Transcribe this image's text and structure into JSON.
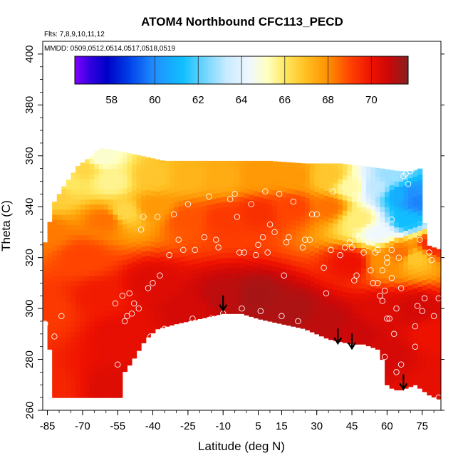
{
  "chart_data": {
    "type": "heatmap",
    "title": "ATOM4 Northbound CFC113_PECD",
    "notes": {
      "flights": "Flts: 7,8,9,10,11,12",
      "dates": "MMDD: 0509,0512,0514,0517,0518,0519"
    },
    "xlabel": "Latitude (deg N)",
    "ylabel": "Theta (C)",
    "xlim": [
      -87,
      83
    ],
    "ylim": [
      260,
      405
    ],
    "x_ticks": [
      -85,
      -70,
      -55,
      -40,
      -25,
      -10,
      5,
      15,
      30,
      45,
      60,
      75
    ],
    "y_ticks": [
      260,
      280,
      300,
      320,
      340,
      360,
      380,
      400
    ],
    "colorbar": {
      "range": [
        56.3,
        71.7
      ],
      "ticks": [
        58,
        60,
        62,
        64,
        66,
        68,
        70
      ],
      "stops": [
        {
          "v": 56.3,
          "c": "#7f00ff"
        },
        {
          "v": 57.0,
          "c": "#3300e0"
        },
        {
          "v": 57.8,
          "c": "#0000c8"
        },
        {
          "v": 58.8,
          "c": "#0040e8"
        },
        {
          "v": 60.0,
          "c": "#2090ff"
        },
        {
          "v": 61.3,
          "c": "#10c0ff"
        },
        {
          "v": 62.3,
          "c": "#6fd6ff"
        },
        {
          "v": 63.3,
          "c": "#c8eaff"
        },
        {
          "v": 64.4,
          "c": "#f0f8ff"
        },
        {
          "v": 65.2,
          "c": "#ffffc0"
        },
        {
          "v": 66.0,
          "c": "#ffe860"
        },
        {
          "v": 67.0,
          "c": "#ffbe20"
        },
        {
          "v": 68.0,
          "c": "#ff9000"
        },
        {
          "v": 69.0,
          "c": "#ff4400"
        },
        {
          "v": 70.0,
          "c": "#ee1100"
        },
        {
          "v": 70.8,
          "c": "#cc0808"
        },
        {
          "v": 71.7,
          "c": "#882020"
        }
      ]
    },
    "field_points": [
      {
        "lat": -86,
        "theta": 268,
        "v": 69.6
      },
      {
        "lat": -86,
        "theta": 300,
        "v": 69.2
      },
      {
        "lat": -86,
        "theta": 330,
        "v": 68.3
      },
      {
        "lat": -82,
        "theta": 345,
        "v": 66.6
      },
      {
        "lat": -76,
        "theta": 350,
        "v": 66.0
      },
      {
        "lat": -70,
        "theta": 355,
        "v": 66.4
      },
      {
        "lat": -62,
        "theta": 360,
        "v": 65.0
      },
      {
        "lat": -58,
        "theta": 350,
        "v": 65.6
      },
      {
        "lat": -52,
        "theta": 338,
        "v": 66.4
      },
      {
        "lat": -60,
        "theta": 335,
        "v": 68.4
      },
      {
        "lat": -70,
        "theta": 320,
        "v": 69.0
      },
      {
        "lat": -62,
        "theta": 305,
        "v": 69.8
      },
      {
        "lat": -52,
        "theta": 290,
        "v": 70.2
      },
      {
        "lat": -55,
        "theta": 268,
        "v": 70.4
      },
      {
        "lat": -40,
        "theta": 352,
        "v": 66.8
      },
      {
        "lat": -40,
        "theta": 340,
        "v": 67.8
      },
      {
        "lat": -40,
        "theta": 310,
        "v": 70.4
      },
      {
        "lat": -25,
        "theta": 352,
        "v": 67.2
      },
      {
        "lat": -25,
        "theta": 335,
        "v": 68.8
      },
      {
        "lat": -25,
        "theta": 300,
        "v": 70.6
      },
      {
        "lat": -10,
        "theta": 352,
        "v": 67.4
      },
      {
        "lat": -10,
        "theta": 335,
        "v": 69.2
      },
      {
        "lat": -10,
        "theta": 305,
        "v": 71.0
      },
      {
        "lat": 5,
        "theta": 352,
        "v": 67.8
      },
      {
        "lat": 5,
        "theta": 338,
        "v": 69.4
      },
      {
        "lat": 5,
        "theta": 305,
        "v": 71.3
      },
      {
        "lat": 20,
        "theta": 352,
        "v": 67.8
      },
      {
        "lat": 20,
        "theta": 340,
        "v": 69.0
      },
      {
        "lat": 20,
        "theta": 300,
        "v": 71.2
      },
      {
        "lat": 35,
        "theta": 352,
        "v": 66.8
      },
      {
        "lat": 35,
        "theta": 340,
        "v": 68.4
      },
      {
        "lat": 35,
        "theta": 295,
        "v": 71.0
      },
      {
        "lat": 45,
        "theta": 348,
        "v": 65.4
      },
      {
        "lat": 48,
        "theta": 335,
        "v": 65.8
      },
      {
        "lat": 45,
        "theta": 318,
        "v": 70.0
      },
      {
        "lat": 45,
        "theta": 290,
        "v": 70.8
      },
      {
        "lat": 55,
        "theta": 348,
        "v": 63.2
      },
      {
        "lat": 56,
        "theta": 330,
        "v": 64.4
      },
      {
        "lat": 58,
        "theta": 318,
        "v": 68.0
      },
      {
        "lat": 58,
        "theta": 300,
        "v": 70.4
      },
      {
        "lat": 60,
        "theta": 282,
        "v": 70.6
      },
      {
        "lat": 62,
        "theta": 352,
        "v": 62.8
      },
      {
        "lat": 66,
        "theta": 345,
        "v": 60.8
      },
      {
        "lat": 68,
        "theta": 335,
        "v": 61.2
      },
      {
        "lat": 66,
        "theta": 322,
        "v": 68.4
      },
      {
        "lat": 70,
        "theta": 345,
        "v": 60.0
      },
      {
        "lat": 73,
        "theta": 342,
        "v": 59.8
      },
      {
        "lat": 72,
        "theta": 320,
        "v": 66.8
      },
      {
        "lat": 72,
        "theta": 300,
        "v": 70.6
      },
      {
        "lat": 80,
        "theta": 325,
        "v": 69.6
      },
      {
        "lat": 80,
        "theta": 290,
        "v": 70.0
      },
      {
        "lat": 80,
        "theta": 270,
        "v": 70.2
      }
    ],
    "top_boundary": [
      [
        -86,
        326
      ],
      [
        -82,
        342
      ],
      [
        -78,
        348
      ],
      [
        -72,
        356
      ],
      [
        -66,
        360
      ],
      [
        -64,
        362
      ],
      [
        -62,
        363
      ],
      [
        -55,
        362
      ],
      [
        -45,
        360
      ],
      [
        -35,
        358
      ],
      [
        -20,
        358
      ],
      [
        -5,
        358
      ],
      [
        10,
        358
      ],
      [
        25,
        357
      ],
      [
        40,
        357
      ],
      [
        50,
        356
      ],
      [
        58,
        355
      ],
      [
        65,
        354
      ],
      [
        70,
        354
      ],
      [
        74,
        355
      ],
      [
        75,
        342
      ],
      [
        77,
        325
      ],
      [
        83,
        323
      ]
    ],
    "bottom_boundary": [
      [
        -86,
        295
      ],
      [
        -85,
        288
      ],
      [
        -83,
        280
      ],
      [
        -82,
        265
      ],
      [
        -53,
        265
      ],
      [
        -53,
        274
      ],
      [
        -49,
        279
      ],
      [
        -43,
        288
      ],
      [
        -38,
        292
      ],
      [
        -30,
        294
      ],
      [
        -20,
        296
      ],
      [
        -10,
        298
      ],
      [
        -2,
        298
      ],
      [
        5,
        296
      ],
      [
        15,
        294
      ],
      [
        25,
        292
      ],
      [
        35,
        288
      ],
      [
        40,
        287
      ],
      [
        45,
        286
      ],
      [
        50,
        286
      ],
      [
        56,
        284
      ],
      [
        58,
        280
      ],
      [
        59,
        274
      ],
      [
        60,
        270
      ],
      [
        63,
        268
      ],
      [
        66,
        268
      ],
      [
        72,
        270
      ],
      [
        78,
        266
      ],
      [
        83,
        264
      ]
    ],
    "observations": [
      [
        -86,
        294
      ],
      [
        -86,
        280
      ],
      [
        -82,
        289
      ],
      [
        -79,
        297
      ],
      [
        -56,
        302
      ],
      [
        -55,
        278
      ],
      [
        -53,
        305
      ],
      [
        -52,
        295
      ],
      [
        -51,
        297
      ],
      [
        -50,
        306
      ],
      [
        -49,
        298
      ],
      [
        -48,
        302
      ],
      [
        -46,
        300
      ],
      [
        -45,
        331
      ],
      [
        -44,
        336
      ],
      [
        -42,
        308
      ],
      [
        -41,
        289
      ],
      [
        -40,
        310
      ],
      [
        -38,
        336
      ],
      [
        -37,
        313
      ],
      [
        -35,
        292
      ],
      [
        -33,
        321
      ],
      [
        -31,
        337
      ],
      [
        -29,
        327
      ],
      [
        -27,
        323
      ],
      [
        -25,
        341
      ],
      [
        -23,
        296
      ],
      [
        -22,
        323
      ],
      [
        -18,
        328
      ],
      [
        -16,
        344
      ],
      [
        -15,
        296
      ],
      [
        -13,
        327
      ],
      [
        -12,
        324
      ],
      [
        -10,
        298
      ],
      [
        -7,
        343
      ],
      [
        -5,
        345
      ],
      [
        -4,
        336
      ],
      [
        -3,
        322
      ],
      [
        -2,
        300
      ],
      [
        -1,
        322
      ],
      [
        2,
        341
      ],
      [
        4,
        321
      ],
      [
        5,
        325
      ],
      [
        6,
        299
      ],
      [
        7,
        328
      ],
      [
        8,
        346
      ],
      [
        9,
        322
      ],
      [
        10,
        333
      ],
      [
        12,
        330
      ],
      [
        14,
        345
      ],
      [
        15,
        297
      ],
      [
        16,
        313
      ],
      [
        17,
        326
      ],
      [
        18,
        328
      ],
      [
        20,
        342
      ],
      [
        22,
        295
      ],
      [
        24,
        324
      ],
      [
        25,
        327
      ],
      [
        27,
        327
      ],
      [
        28,
        337
      ],
      [
        30,
        337
      ],
      [
        33,
        316
      ],
      [
        34,
        306
      ],
      [
        36,
        323
      ],
      [
        37,
        346
      ],
      [
        40,
        321
      ],
      [
        42,
        324
      ],
      [
        44,
        326
      ],
      [
        45,
        324
      ],
      [
        46,
        311
      ],
      [
        47,
        313
      ],
      [
        48,
        328
      ],
      [
        50,
        322
      ],
      [
        52,
        326
      ],
      [
        53,
        315
      ],
      [
        54,
        310
      ],
      [
        55,
        322
      ],
      [
        56,
        323
      ],
      [
        56,
        310
      ],
      [
        57,
        305
      ],
      [
        58,
        303
      ],
      [
        58,
        315
      ],
      [
        59,
        307
      ],
      [
        59,
        281
      ],
      [
        60,
        296
      ],
      [
        60,
        318
      ],
      [
        60,
        320
      ],
      [
        61,
        296
      ],
      [
        62,
        312
      ],
      [
        62,
        323
      ],
      [
        62,
        335
      ],
      [
        63,
        290
      ],
      [
        64,
        300
      ],
      [
        64,
        275
      ],
      [
        65,
        320
      ],
      [
        66,
        308
      ],
      [
        66,
        278
      ],
      [
        67,
        352
      ],
      [
        68,
        353
      ],
      [
        69,
        349
      ],
      [
        70,
        354
      ],
      [
        71,
        355
      ],
      [
        72,
        293
      ],
      [
        72,
        285
      ],
      [
        73,
        267
      ],
      [
        73,
        301
      ],
      [
        74,
        327
      ],
      [
        75,
        299
      ],
      [
        76,
        304
      ],
      [
        78,
        322
      ],
      [
        79,
        319
      ],
      [
        80,
        297
      ],
      [
        82,
        265
      ],
      [
        82,
        304
      ]
    ],
    "arrows": [
      {
        "lat": -10,
        "theta": 299
      },
      {
        "lat": 39,
        "theta": 286
      },
      {
        "lat": 45,
        "theta": 284
      },
      {
        "lat": 67,
        "theta": 268
      }
    ]
  }
}
